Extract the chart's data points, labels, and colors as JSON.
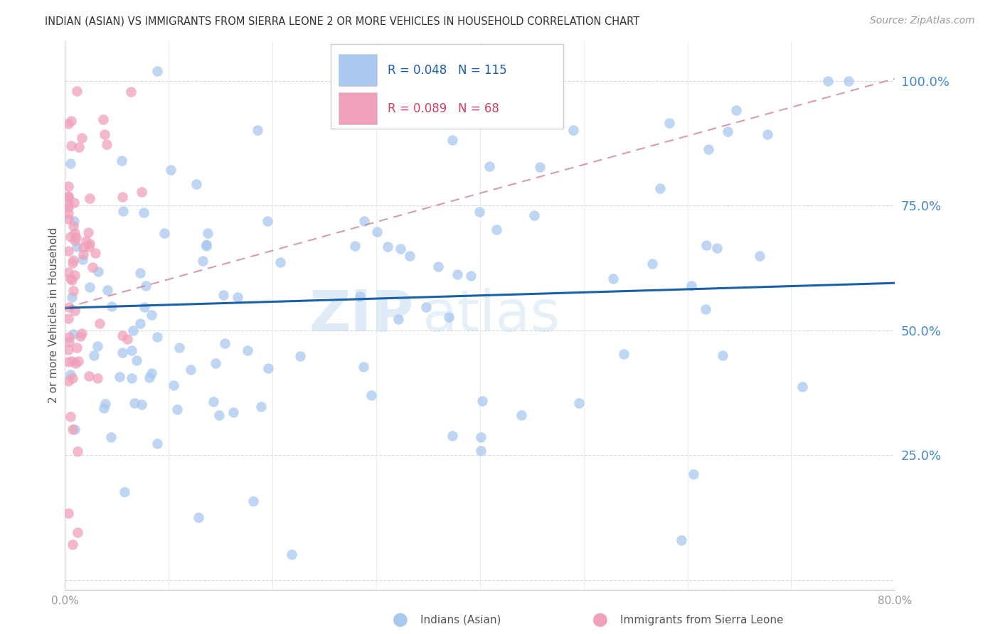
{
  "title": "INDIAN (ASIAN) VS IMMIGRANTS FROM SIERRA LEONE 2 OR MORE VEHICLES IN HOUSEHOLD CORRELATION CHART",
  "source": "Source: ZipAtlas.com",
  "ylabel": "2 or more Vehicles in Household",
  "r_indian": 0.048,
  "n_indian": 115,
  "r_sierra": 0.089,
  "n_sierra": 68,
  "color_indian": "#a8c8f0",
  "color_sierra": "#f0a0b8",
  "color_trend_indian": "#1a5fa8",
  "color_trend_sierra": "#c87090",
  "color_right_axis": "#4488cc",
  "color_legend_text_blue": "#1a5fa8",
  "color_legend_text_pink": "#d04060",
  "watermark": "ZIPatlas",
  "xmin": 0.0,
  "xmax": 0.8,
  "ymin": -0.02,
  "ymax": 1.08,
  "right_yticks": [
    0.25,
    0.5,
    0.75,
    1.0
  ],
  "right_yticklabels": [
    "25.0%",
    "50.0%",
    "75.0%",
    "100.0%"
  ],
  "grid_yticks": [
    0.0,
    0.25,
    0.5,
    0.75,
    1.0
  ],
  "x_ticks": [
    0.0,
    0.1,
    0.2,
    0.3,
    0.4,
    0.5,
    0.6,
    0.7,
    0.8
  ],
  "x_ticklabels": [
    "0.0%",
    "",
    "",
    "",
    "",
    "",
    "",
    "",
    "80.0%"
  ],
  "legend_label_indian": "Indians (Asian)",
  "legend_label_sierra": "Immigrants from Sierra Leone",
  "trend_indian_x0": 0.0,
  "trend_indian_y0": 0.545,
  "trend_indian_x1": 0.8,
  "trend_indian_y1": 0.595,
  "trend_sierra_x0": 0.0,
  "trend_sierra_y0": 0.545,
  "trend_sierra_x1": 0.8,
  "trend_sierra_y1": 1.005
}
